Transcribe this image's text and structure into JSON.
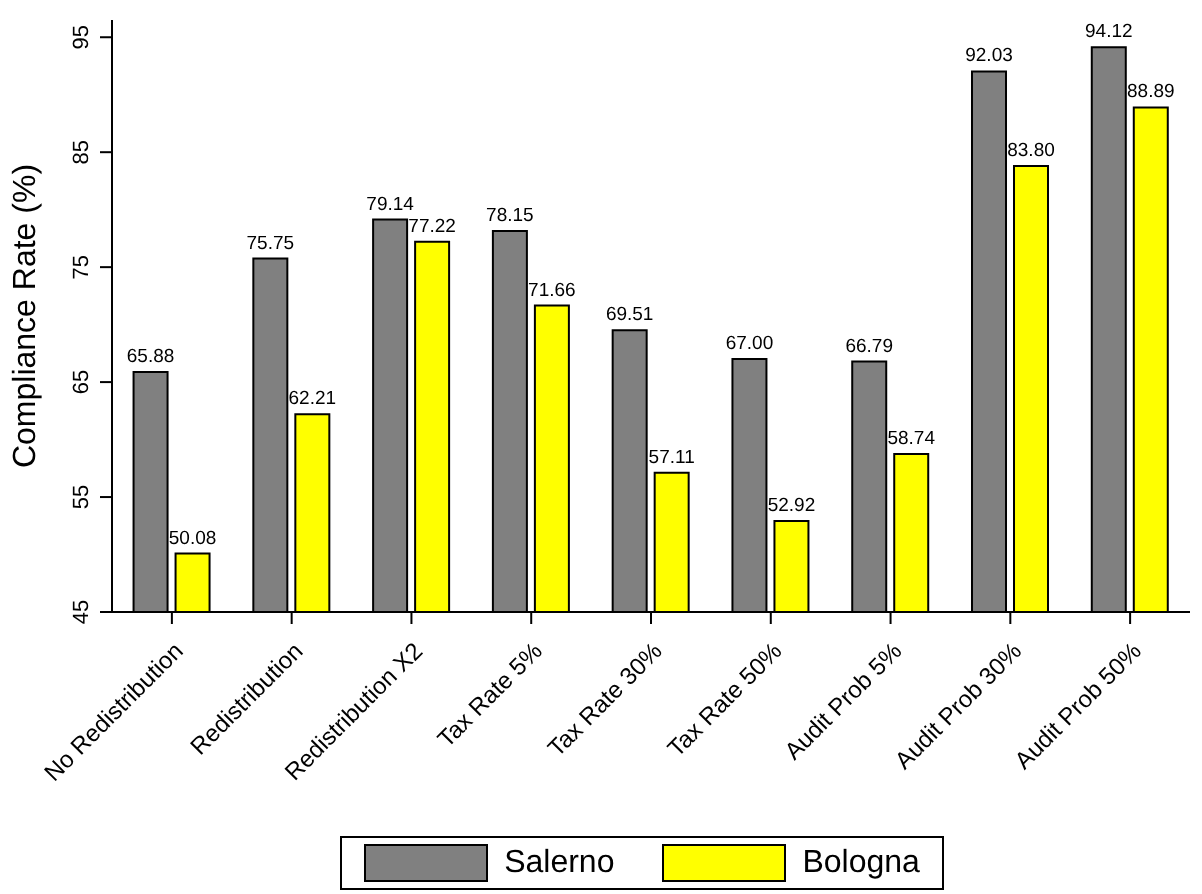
{
  "chart_data": {
    "type": "bar",
    "ylabel": "Compliance Rate (%)",
    "categories": [
      "No Redistribution",
      "Redistribution",
      "Redistribution X2",
      "Tax Rate 5%",
      "Tax Rate 30%",
      "Tax Rate 50%",
      "Audit Prob 5%",
      "Audit Prob 30%",
      "Audit Prob 50%"
    ],
    "series": [
      {
        "name": "Salerno",
        "color": "#808080",
        "values": [
          65.88,
          75.75,
          79.14,
          78.15,
          69.51,
          67.0,
          66.79,
          92.03,
          94.12
        ],
        "value_labels": [
          "65.88",
          "75.75",
          "79.14",
          "78.15",
          "69.51",
          "67.00",
          "66.79",
          "92.03",
          "94.12"
        ]
      },
      {
        "name": "Bologna",
        "color": "#ffff00",
        "values": [
          50.08,
          62.21,
          77.22,
          71.66,
          57.11,
          52.92,
          58.74,
          83.8,
          88.89
        ],
        "value_labels": [
          "50.08",
          "62.21",
          "77.22",
          "71.66",
          "57.11",
          "52.92",
          "58.74",
          "83.80",
          "88.89"
        ]
      }
    ],
    "ylim": [
      45,
      96.5
    ],
    "yticks": [
      45,
      55,
      65,
      75,
      85,
      95
    ],
    "grid": false,
    "legend": "bottom"
  }
}
